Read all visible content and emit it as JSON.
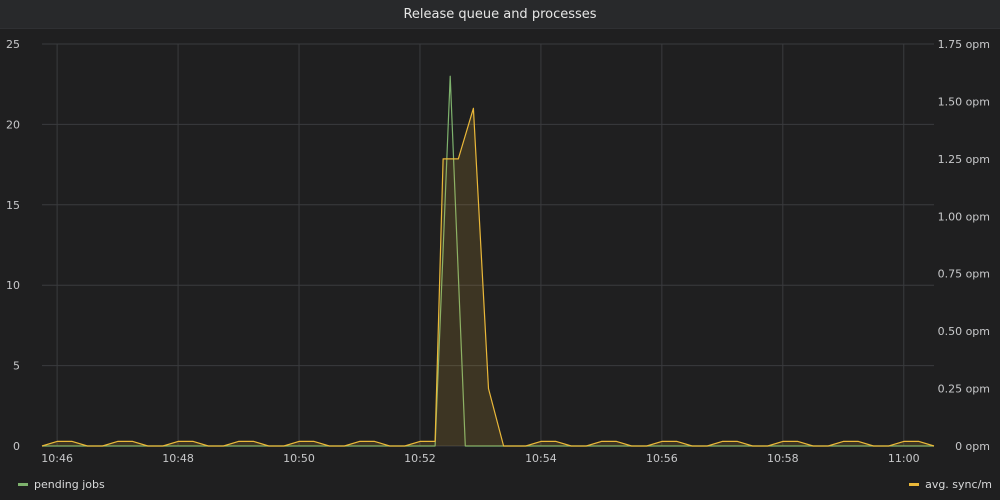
{
  "panel": {
    "title": "Release queue and processes"
  },
  "colors": {
    "pending": "#7eb26d",
    "sync": "#eab839",
    "grid": "#3a3b3e",
    "axis": "#c7c8ca"
  },
  "chart_data": {
    "type": "line",
    "title": "Release queue and processes",
    "x_ticks": [
      "10:46",
      "10:48",
      "10:50",
      "10:52",
      "10:54",
      "10:56",
      "10:58",
      "11:00"
    ],
    "y_left": {
      "ticks": [
        0,
        5,
        10,
        15,
        20,
        25
      ],
      "range": [
        0,
        25
      ]
    },
    "y_right": {
      "ticks": [
        "0 opm",
        "0.25 opm",
        "0.50 opm",
        "0.75 opm",
        "1.00 opm",
        "1.25 opm",
        "1.50 opm",
        "1.75 opm"
      ],
      "range": [
        0,
        1.75
      ]
    },
    "x_range": [
      "10:45:45",
      "11:00:30"
    ],
    "grid": true,
    "legend_position": "bottom",
    "series": [
      {
        "name": "pending jobs",
        "axis": "left",
        "color": "#7eb26d",
        "fill": false,
        "points": [
          [
            "10:45:45",
            0
          ],
          [
            "10:52:15",
            0
          ],
          [
            "10:52:30",
            23
          ],
          [
            "10:52:45",
            0
          ],
          [
            "11:00:30",
            0
          ]
        ]
      },
      {
        "name": "avg. sync/m",
        "axis": "right",
        "color": "#eab839",
        "fill": true,
        "points": [
          [
            "10:45:45",
            0
          ],
          [
            "10:46:00",
            0.02
          ],
          [
            "10:46:15",
            0.02
          ],
          [
            "10:46:30",
            0
          ],
          [
            "10:46:45",
            0
          ],
          [
            "10:47:00",
            0.02
          ],
          [
            "10:47:15",
            0.02
          ],
          [
            "10:47:30",
            0
          ],
          [
            "10:47:45",
            0
          ],
          [
            "10:48:00",
            0.02
          ],
          [
            "10:48:15",
            0.02
          ],
          [
            "10:48:30",
            0
          ],
          [
            "10:48:45",
            0
          ],
          [
            "10:49:00",
            0.02
          ],
          [
            "10:49:15",
            0.02
          ],
          [
            "10:49:30",
            0
          ],
          [
            "10:49:45",
            0
          ],
          [
            "10:50:00",
            0.02
          ],
          [
            "10:50:15",
            0.02
          ],
          [
            "10:50:30",
            0
          ],
          [
            "10:50:45",
            0
          ],
          [
            "10:51:00",
            0.02
          ],
          [
            "10:51:15",
            0.02
          ],
          [
            "10:51:30",
            0
          ],
          [
            "10:51:45",
            0
          ],
          [
            "10:52:00",
            0.02
          ],
          [
            "10:52:15",
            0.02
          ],
          [
            "10:52:23",
            1.25
          ],
          [
            "10:52:38",
            1.25
          ],
          [
            "10:52:53",
            1.47
          ],
          [
            "10:53:08",
            0.25
          ],
          [
            "10:53:23",
            0
          ],
          [
            "10:53:45",
            0
          ],
          [
            "10:54:00",
            0.02
          ],
          [
            "10:54:15",
            0.02
          ],
          [
            "10:54:30",
            0
          ],
          [
            "10:54:45",
            0
          ],
          [
            "10:55:00",
            0.02
          ],
          [
            "10:55:15",
            0.02
          ],
          [
            "10:55:30",
            0
          ],
          [
            "10:55:45",
            0
          ],
          [
            "10:56:00",
            0.02
          ],
          [
            "10:56:15",
            0.02
          ],
          [
            "10:56:30",
            0
          ],
          [
            "10:56:45",
            0
          ],
          [
            "10:57:00",
            0.02
          ],
          [
            "10:57:15",
            0.02
          ],
          [
            "10:57:30",
            0
          ],
          [
            "10:57:45",
            0
          ],
          [
            "10:58:00",
            0.02
          ],
          [
            "10:58:15",
            0.02
          ],
          [
            "10:58:30",
            0
          ],
          [
            "10:58:45",
            0
          ],
          [
            "10:59:00",
            0.02
          ],
          [
            "10:59:15",
            0.02
          ],
          [
            "10:59:30",
            0
          ],
          [
            "10:59:45",
            0
          ],
          [
            "11:00:00",
            0.02
          ],
          [
            "11:00:15",
            0.02
          ],
          [
            "11:00:30",
            0
          ]
        ]
      }
    ]
  },
  "legend": {
    "left": "pending jobs",
    "right": "avg. sync/m"
  }
}
